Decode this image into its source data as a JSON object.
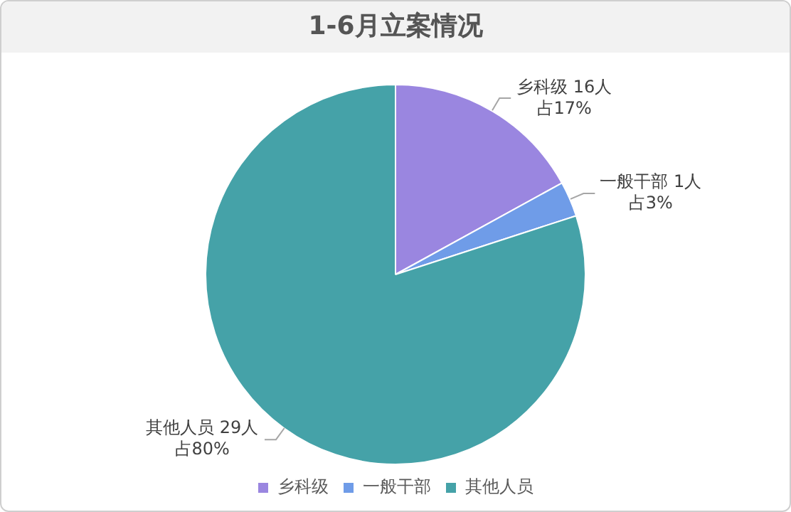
{
  "chart_data": {
    "type": "pie",
    "title": "1-6月立案情况",
    "categories": [
      "乡科级",
      "一般干部",
      "其他人员"
    ],
    "values": [
      17,
      3,
      80
    ],
    "colors": [
      "#9a86e0",
      "#6f9ce8",
      "#45a2a8"
    ],
    "value_labels": [
      "占17%",
      "占3%",
      "占80%"
    ],
    "annotations": [
      "16人",
      "1人",
      "29人"
    ],
    "legend": "bottom"
  }
}
